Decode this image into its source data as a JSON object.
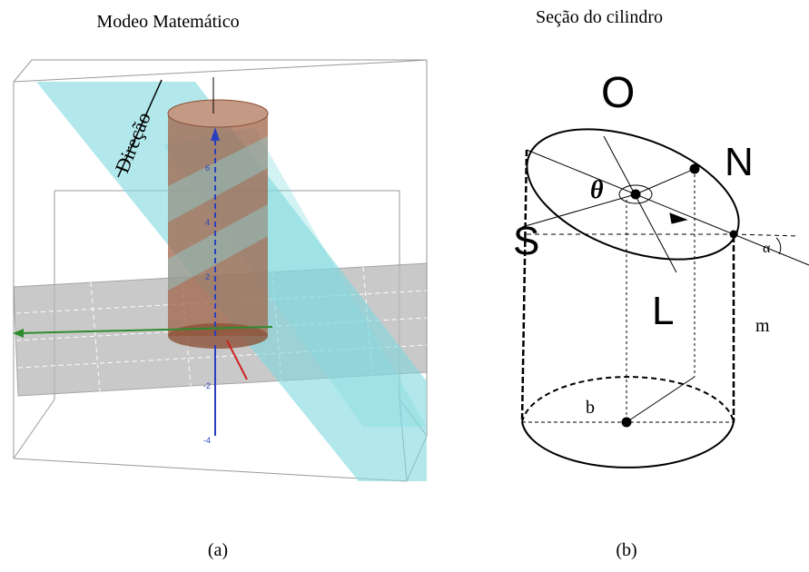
{
  "left_panel": {
    "title": "Modeo Matemático",
    "direction_label": "Direção",
    "caption": "(a)",
    "axis_labels": [
      "6",
      "4",
      "2",
      "-2",
      "-4"
    ]
  },
  "right_panel": {
    "title": "Seção do cilindro",
    "caption": "(b)",
    "points": {
      "O": "O",
      "N": "N",
      "S": "S",
      "L": "L"
    },
    "angle_theta": "θ",
    "angle_alpha": "α",
    "side_label": "m",
    "radius_label": "b"
  }
}
